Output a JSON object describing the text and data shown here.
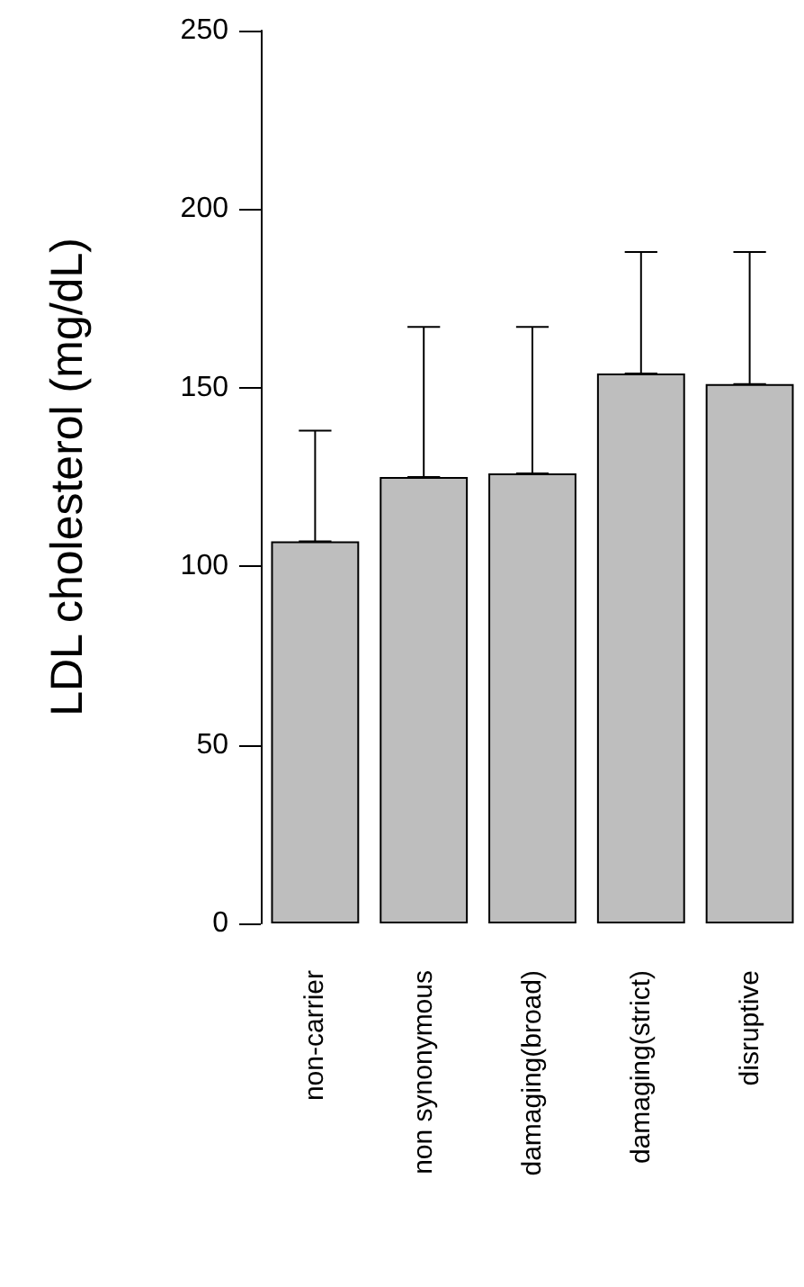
{
  "chart_data": {
    "type": "bar",
    "ylabel": "LDL cholesterol (mg/dL)",
    "categories": [
      "non-carrier",
      "non synonymous",
      "damaging(broad)",
      "damaging(strict)",
      "disruptive"
    ],
    "values": [
      107,
      125,
      126,
      154,
      151
    ],
    "errors": [
      [
        107,
        138
      ],
      [
        125,
        167
      ],
      [
        126,
        167
      ],
      [
        154,
        188
      ],
      [
        151,
        188
      ]
    ],
    "color": "#bebebe",
    "ylim": [
      0,
      250
    ],
    "yticks": [
      0,
      50,
      100,
      150,
      200,
      250
    ],
    "grid": false
  }
}
